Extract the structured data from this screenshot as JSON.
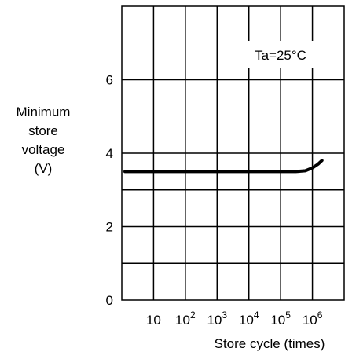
{
  "chart_data": {
    "type": "line",
    "ylabel_lines": [
      "Minimum",
      "store",
      "voltage",
      "(V)"
    ],
    "xlabel": "Store cycle (times)",
    "annotation": "Ta=25°C",
    "x_scale": "log",
    "xlim": [
      1,
      10000000
    ],
    "ylim": [
      0,
      8
    ],
    "y_ticks": [
      {
        "value": 0,
        "label": "0"
      },
      {
        "value": 2,
        "label": "2"
      },
      {
        "value": 4,
        "label": "4"
      },
      {
        "value": 6,
        "label": "6"
      }
    ],
    "x_ticks": [
      {
        "value": 10,
        "base": "10",
        "exp": ""
      },
      {
        "value": 100,
        "base": "10",
        "exp": "2"
      },
      {
        "value": 1000,
        "base": "10",
        "exp": "3"
      },
      {
        "value": 10000,
        "base": "10",
        "exp": "4"
      },
      {
        "value": 100000,
        "base": "10",
        "exp": "5"
      },
      {
        "value": 1000000,
        "base": "10",
        "exp": "6"
      }
    ],
    "gridlines_y": [
      1,
      2,
      3,
      4,
      6
    ],
    "gridlines_x": [
      10,
      100,
      1000,
      10000,
      100000,
      1000000
    ],
    "series": [
      {
        "x": [
          1.0,
          10,
          100,
          1000,
          10000,
          100000,
          300000,
          600000,
          1000000,
          1500000,
          2000000
        ],
        "y": [
          3.5,
          3.5,
          3.5,
          3.5,
          3.5,
          3.5,
          3.5,
          3.52,
          3.6,
          3.7,
          3.8
        ]
      }
    ]
  }
}
